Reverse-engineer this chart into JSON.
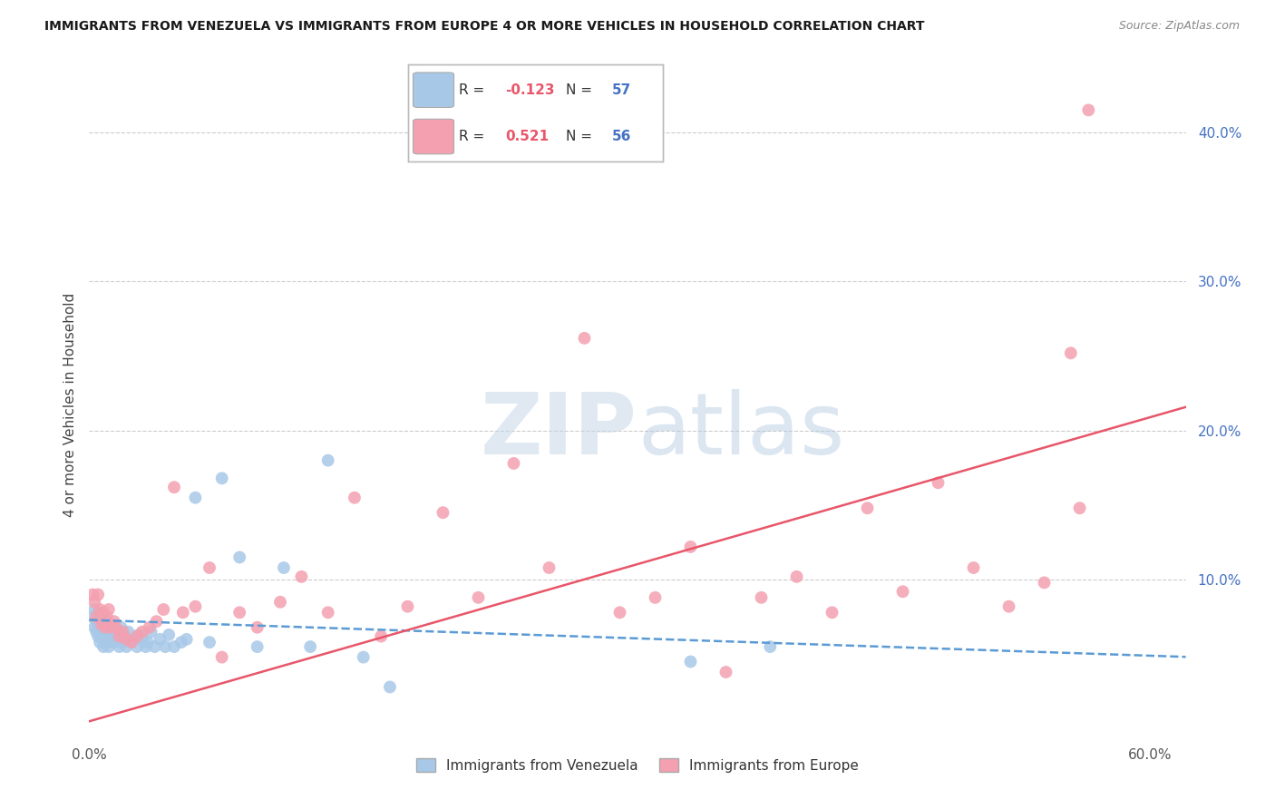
{
  "title": "IMMIGRANTS FROM VENEZUELA VS IMMIGRANTS FROM EUROPE 4 OR MORE VEHICLES IN HOUSEHOLD CORRELATION CHART",
  "source": "Source: ZipAtlas.com",
  "ylabel": "4 or more Vehicles in Household",
  "xlim": [
    0.0,
    0.62
  ],
  "ylim": [
    -0.005,
    0.44
  ],
  "venezuela_color": "#a8c8e8",
  "europe_color": "#f4a0b0",
  "venezuela_line_color": "#5b9bd5",
  "europe_line_color": "#e8566a",
  "watermark_zip_color": "#c8d8e8",
  "watermark_atlas_color": "#b0c8e0",
  "background_color": "#ffffff",
  "grid_color": "#cccccc",
  "right_axis_color": "#4472c4",
  "legend_label1": "Immigrants from Venezuela",
  "legend_label2": "Immigrants from Europe",
  "R1": "-0.123",
  "N1": "57",
  "R2": "0.521",
  "N2": "56"
}
